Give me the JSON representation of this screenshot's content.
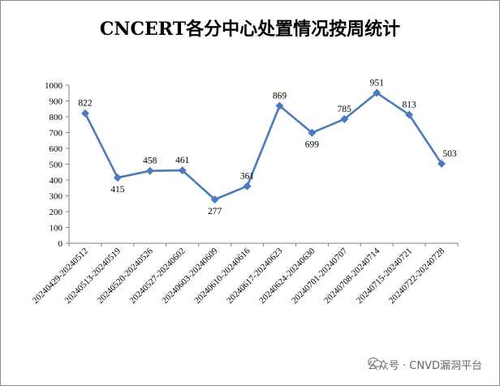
{
  "chart_data": {
    "type": "line",
    "title": "CNCERT各分中心处置情况按周统计",
    "xlabel": "",
    "ylabel": "",
    "ylim": [
      0,
      1000
    ],
    "yticks": [
      0,
      100,
      200,
      300,
      400,
      500,
      600,
      700,
      800,
      900,
      1000
    ],
    "categories": [
      "20240429-20240512",
      "20240513-20240519",
      "20240520-20240526",
      "20240527-20240602",
      "20240603-20240609",
      "20240610-20240616",
      "20240617-20240623",
      "20240624-20240630",
      "20240701-20240707",
      "20240708-20240714",
      "20240715-20240721",
      "20240722-20240728"
    ],
    "series": [
      {
        "values": [
          822,
          415,
          458,
          461,
          277,
          361,
          869,
          699,
          785,
          951,
          813,
          503
        ]
      }
    ],
    "grid": false,
    "legend": "none",
    "colors": {
      "line": "#4a7bbd",
      "marker": "#4a7bbd"
    }
  },
  "watermark": {
    "text": "公众号 · CNVD漏洞平台",
    "icon": "wechat-icon"
  }
}
